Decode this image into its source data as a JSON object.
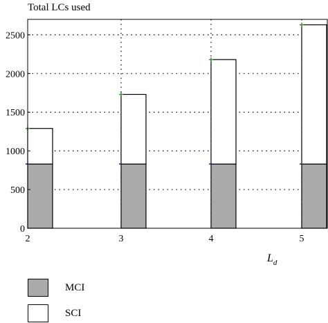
{
  "chart_data": {
    "type": "bar",
    "stacked": true,
    "categories": [
      "2",
      "3",
      "4",
      "5"
    ],
    "series": [
      {
        "name": "MCI",
        "color": "#aaaaaa",
        "values": [
          830,
          830,
          830,
          830
        ]
      },
      {
        "name": "SCI",
        "color": "#ffffff",
        "values": [
          460,
          900,
          1350,
          1800
        ]
      }
    ],
    "totals_marked": [
      1290,
      1730,
      2180,
      2630
    ],
    "marker_color": "#4a8a3a",
    "ylabel": "Total LCs used",
    "xlabel_main": "L",
    "xlabel_sub": "d",
    "ylim": [
      0,
      2700
    ],
    "yticks": [
      0,
      500,
      1000,
      1500,
      2000,
      2500
    ],
    "grid": "dotted",
    "legend_position": "below"
  }
}
